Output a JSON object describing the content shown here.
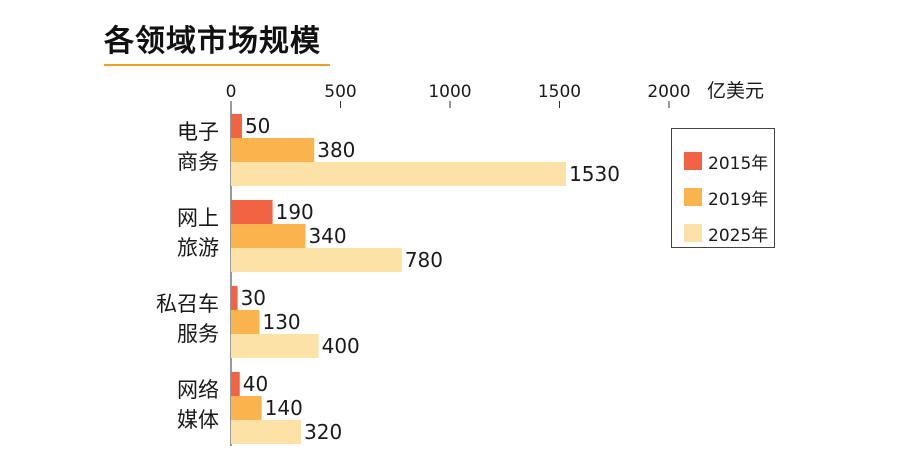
{
  "title": "各领域市场规模",
  "colors": {
    "title_rule": "#f0a020"
  },
  "chart_data": {
    "type": "bar",
    "orientation": "horizontal",
    "title": "各领域市场规模",
    "unit_label": "亿美元",
    "xlim": [
      0,
      2000
    ],
    "x_ticks": [
      0,
      500,
      1000,
      1500,
      2000
    ],
    "x_tick_labels": [
      "0",
      "500",
      "1000",
      "1500",
      "2000"
    ],
    "categories": [
      [
        "电子",
        "商务"
      ],
      [
        "网上",
        "旅游"
      ],
      [
        "私召车",
        "服务"
      ],
      [
        "网络",
        "媒体"
      ]
    ],
    "series": [
      {
        "name": "2015年",
        "color": "#f26343",
        "values": [
          50,
          190,
          30,
          40
        ]
      },
      {
        "name": "2019年",
        "color": "#fbb44d",
        "values": [
          380,
          340,
          130,
          140
        ]
      },
      {
        "name": "2025年",
        "color": "#fde2a7",
        "values": [
          1530,
          780,
          400,
          320
        ]
      }
    ],
    "legend_position": "right",
    "grid": false
  }
}
